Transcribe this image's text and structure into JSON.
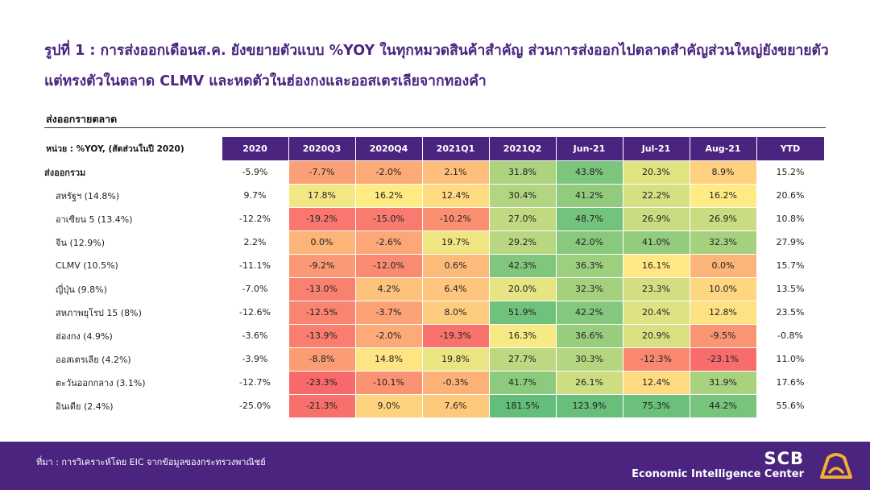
{
  "title": "รูปที่ 1 : การส่งออกเดือนส.ค. ยังขยายตัวแบบ %YOY ในทุกหมวดสินค้าสำคัญ ส่วนการส่งออกไปตลาดสำคัญส่วนใหญ่ยังขยายตัว แต่ทรงตัวในตลาด CLMV และหดตัวในฮ่องกงและออสเตรเลียจากทองคำ",
  "subtitle": "ส่งออกรายตลาด",
  "footer": {
    "source": "ที่มา : การวิเคราะห์โดย EIC จากข้อมูลของกระทรวงพาณิชย์",
    "brand": "SCB",
    "brand_sub": "Economic Intelligence Center"
  },
  "colors": {
    "header": "#4b2480",
    "scale_low": "#f8696b",
    "scale_mid": "#ffeb84",
    "scale_high": "#63be7b"
  },
  "chart_data": {
    "type": "table",
    "unit_label": "หน่วย : %YOY, (สัดส่วนในปี 2020)",
    "columns": [
      "2020",
      "2020Q3",
      "2020Q4",
      "2021Q1",
      "2021Q2",
      "Jun-21",
      "Jul-21",
      "Aug-21",
      "YTD"
    ],
    "rows": [
      {
        "label": "ส่งออกรวม",
        "values": [
          -5.9,
          -7.7,
          -2.0,
          2.1,
          31.8,
          43.8,
          20.3,
          8.9,
          15.2
        ]
      },
      {
        "label": "สหรัฐฯ (14.8%)",
        "values": [
          9.7,
          17.8,
          16.2,
          12.4,
          30.4,
          41.2,
          22.2,
          16.2,
          20.6
        ]
      },
      {
        "label": "อาเซียน 5 (13.4%)",
        "values": [
          -12.2,
          -19.2,
          -15.0,
          -10.2,
          27.0,
          48.7,
          26.9,
          26.9,
          10.8
        ]
      },
      {
        "label": "จีน (12.9%)",
        "values": [
          2.2,
          0.0,
          -2.6,
          19.7,
          29.2,
          42.0,
          41.0,
          32.3,
          27.9
        ]
      },
      {
        "label": "CLMV (10.5%)",
        "values": [
          -11.1,
          -9.2,
          -12.0,
          0.6,
          42.3,
          36.3,
          16.1,
          0.0,
          15.7
        ]
      },
      {
        "label": "ญี่ปุ่น (9.8%)",
        "values": [
          -7.0,
          -13.0,
          4.2,
          6.4,
          20.0,
          32.3,
          23.3,
          10.0,
          13.5
        ]
      },
      {
        "label": "สหภาพยุโรป 15 (8%)",
        "values": [
          -12.6,
          -12.5,
          -3.7,
          8.0,
          51.9,
          42.2,
          20.4,
          12.8,
          23.5
        ]
      },
      {
        "label": "ฮ่องกง (4.9%)",
        "values": [
          -3.6,
          -13.9,
          -2.0,
          -19.3,
          16.3,
          36.6,
          20.9,
          -9.5,
          -0.8
        ]
      },
      {
        "label": "ออสเตรเลีย (4.2%)",
        "values": [
          -3.9,
          -8.8,
          14.8,
          19.8,
          27.7,
          30.3,
          -12.3,
          -23.1,
          11.0
        ]
      },
      {
        "label": "ตะวันออกกลาง (3.1%)",
        "values": [
          -12.7,
          -23.3,
          -10.1,
          -0.3,
          41.7,
          26.1,
          12.4,
          31.9,
          17.6
        ]
      },
      {
        "label": "อินเดีย (2.4%)",
        "values": [
          -25.0,
          -21.3,
          9.0,
          7.6,
          181.5,
          123.9,
          75.3,
          44.2,
          55.6
        ]
      }
    ],
    "heatmap_columns": [
      "2020Q3",
      "2020Q4",
      "2021Q1",
      "2021Q2",
      "Jun-21",
      "Jul-21",
      "Aug-21"
    ]
  }
}
